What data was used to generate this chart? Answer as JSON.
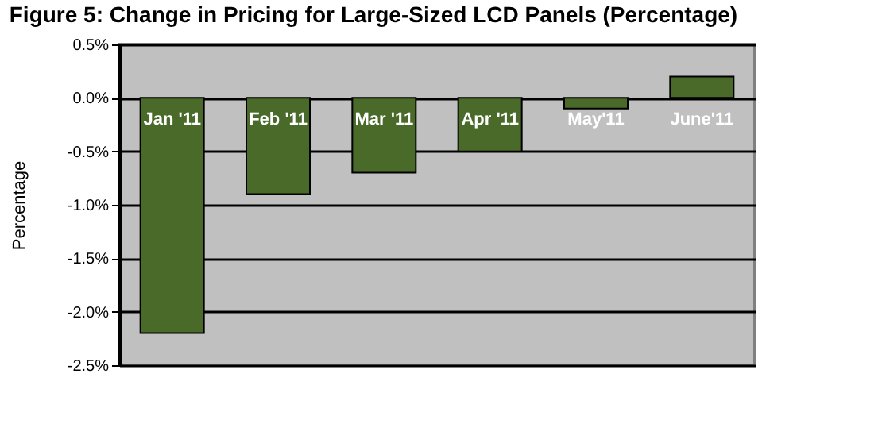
{
  "chart_data": {
    "type": "bar",
    "title": "Figure 5: Change in Pricing for Large-Sized LCD Panels (Percentage)",
    "ylabel": "Percentage",
    "categories": [
      "Jan '11",
      "Feb '11",
      "Mar '11",
      "Apr '11",
      "May'11",
      "June'11"
    ],
    "values": [
      -2.2,
      -0.9,
      -0.7,
      -0.5,
      -0.1,
      0.2
    ],
    "color": "#4a6a2a",
    "ylim": [
      -2.5,
      0.5
    ],
    "yticks": [
      {
        "value": 0.5,
        "label": "0.5%"
      },
      {
        "value": 0.0,
        "label": "0.0%"
      },
      {
        "value": -0.5,
        "label": "-0.5%"
      },
      {
        "value": -1.0,
        "label": "-1.0%"
      },
      {
        "value": -1.5,
        "label": "-1.5%"
      },
      {
        "value": -2.0,
        "label": "-2.0%"
      },
      {
        "value": -2.5,
        "label": "-2.5%"
      }
    ],
    "grid": "y"
  }
}
